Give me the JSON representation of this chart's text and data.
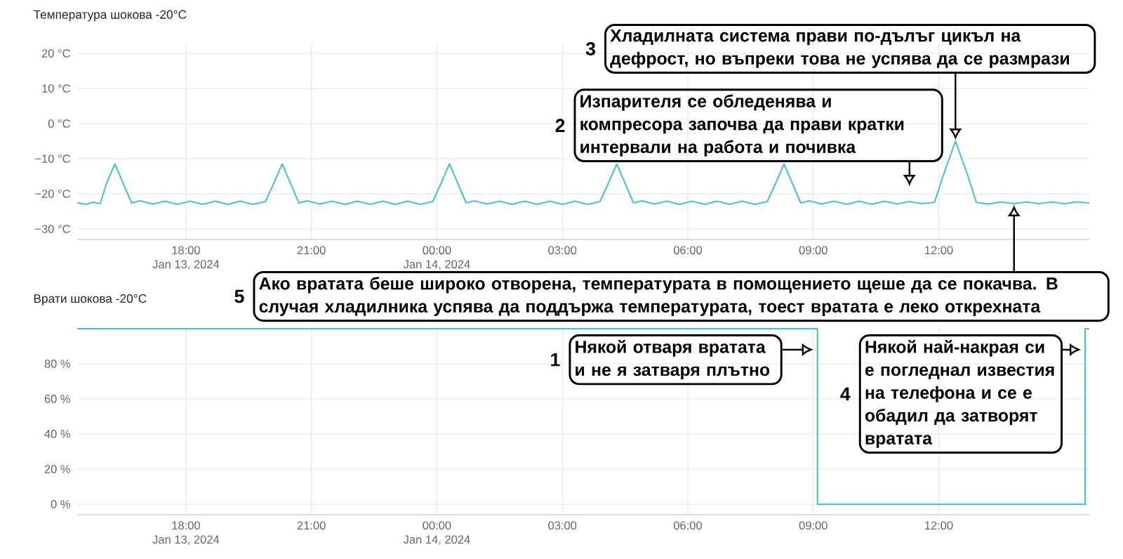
{
  "chart_data": [
    {
      "type": "line",
      "title": "Температура шокова -20°C",
      "color": "#4dbfd9",
      "x": [
        "2024-01-13T15:24",
        "2024-01-13T15:36",
        "2024-01-13T15:48",
        "2024-01-13T15:57",
        "2024-01-13T16:06",
        "2024-01-13T16:18",
        "2024-01-13T16:30",
        "2024-01-13T16:42",
        "2024-01-13T16:54",
        "2024-01-13T17:12",
        "2024-01-13T17:30",
        "2024-01-13T17:48",
        "2024-01-13T18:06",
        "2024-01-13T18:24",
        "2024-01-13T18:42",
        "2024-01-13T19:00",
        "2024-01-13T19:18",
        "2024-01-13T19:36",
        "2024-01-13T19:54",
        "2024-01-13T20:06",
        "2024-01-13T20:18",
        "2024-01-13T20:30",
        "2024-01-13T20:42",
        "2024-01-13T20:54",
        "2024-01-13T21:12",
        "2024-01-13T21:30",
        "2024-01-13T21:48",
        "2024-01-13T22:06",
        "2024-01-13T22:24",
        "2024-01-13T22:42",
        "2024-01-13T23:00",
        "2024-01-13T23:18",
        "2024-01-13T23:36",
        "2024-01-13T23:54",
        "2024-01-14T00:06",
        "2024-01-14T00:18",
        "2024-01-14T00:30",
        "2024-01-14T00:42",
        "2024-01-14T00:54",
        "2024-01-14T01:12",
        "2024-01-14T01:30",
        "2024-01-14T01:48",
        "2024-01-14T02:06",
        "2024-01-14T02:24",
        "2024-01-14T02:42",
        "2024-01-14T03:00",
        "2024-01-14T03:18",
        "2024-01-14T03:36",
        "2024-01-14T03:54",
        "2024-01-14T04:06",
        "2024-01-14T04:18",
        "2024-01-14T04:30",
        "2024-01-14T04:42",
        "2024-01-14T04:54",
        "2024-01-14T05:12",
        "2024-01-14T05:30",
        "2024-01-14T05:48",
        "2024-01-14T06:06",
        "2024-01-14T06:24",
        "2024-01-14T06:42",
        "2024-01-14T07:00",
        "2024-01-14T07:18",
        "2024-01-14T07:36",
        "2024-01-14T07:54",
        "2024-01-14T08:06",
        "2024-01-14T08:18",
        "2024-01-14T08:30",
        "2024-01-14T08:42",
        "2024-01-14T08:54",
        "2024-01-14T09:12",
        "2024-01-14T09:30",
        "2024-01-14T09:48",
        "2024-01-14T10:06",
        "2024-01-14T10:24",
        "2024-01-14T10:42",
        "2024-01-14T11:00",
        "2024-01-14T11:18",
        "2024-01-14T11:36",
        "2024-01-14T11:54",
        "2024-01-14T12:06",
        "2024-01-14T12:24",
        "2024-01-14T12:42",
        "2024-01-14T12:54",
        "2024-01-14T13:12",
        "2024-01-14T13:30",
        "2024-01-14T13:48",
        "2024-01-14T14:06",
        "2024-01-14T14:24",
        "2024-01-14T14:42",
        "2024-01-14T15:00",
        "2024-01-14T15:18",
        "2024-01-14T15:36"
      ],
      "values": [
        -22.5,
        -23.0,
        -22.4,
        -22.8,
        -17,
        -11.5,
        -17,
        -22.6,
        -22.0,
        -22.9,
        -22.1,
        -23.0,
        -22.1,
        -23.0,
        -22.1,
        -23.0,
        -22.1,
        -23.0,
        -22.2,
        -17,
        -11.5,
        -17,
        -22.6,
        -22.0,
        -22.9,
        -22.1,
        -23.0,
        -22.1,
        -23.0,
        -22.1,
        -23.0,
        -22.1,
        -23.0,
        -22.2,
        -17,
        -11.5,
        -17,
        -22.6,
        -22.0,
        -22.9,
        -22.1,
        -23.0,
        -22.1,
        -23.0,
        -22.1,
        -23.0,
        -22.1,
        -23.0,
        -22.2,
        -17,
        -11.5,
        -17,
        -22.6,
        -22.0,
        -22.9,
        -22.1,
        -23.0,
        -22.1,
        -23.0,
        -22.1,
        -23.0,
        -22.1,
        -23.0,
        -22.2,
        -17,
        -11.5,
        -17,
        -22.6,
        -22.0,
        -22.9,
        -22.1,
        -23.0,
        -22.1,
        -23.0,
        -22.1,
        -22.9,
        -22.2,
        -22.8,
        -22.4,
        -15,
        -5,
        -15,
        -22.5,
        -22.9,
        -22.3,
        -22.8,
        -22.3,
        -22.8,
        -22.3,
        -22.8,
        -22.3,
        -22.6
      ],
      "xlim": [
        "2024-01-13T15:24",
        "2024-01-14T15:36"
      ],
      "ylim": [
        -33,
        23
      ],
      "xticks": [
        {
          "value": "2024-01-13T18:00",
          "label": "18:00"
        },
        {
          "value": "2024-01-13T21:00",
          "label": "21:00"
        },
        {
          "value": "2024-01-14T00:00",
          "label": "00:00"
        },
        {
          "value": "2024-01-14T03:00",
          "label": "03:00"
        },
        {
          "value": "2024-01-14T06:00",
          "label": "06:00"
        },
        {
          "value": "2024-01-14T09:00",
          "label": "09:00"
        },
        {
          "value": "2024-01-14T12:00",
          "label": "12:00"
        }
      ],
      "yticks": [
        {
          "value": -30,
          "label": "−30 °C"
        },
        {
          "value": -20,
          "label": "−20 °C"
        },
        {
          "value": -10,
          "label": "−10 °C"
        },
        {
          "value": 0,
          "label": "0 °C"
        },
        {
          "value": 10,
          "label": "10 °C"
        },
        {
          "value": 20,
          "label": "20 °C"
        }
      ],
      "grid": true,
      "annotations": [
        "Jan 13, 2024",
        "Jan 14, 2024",
        "2",
        {
          "text": "Изпарителя се обледенява и компресора започва да прави кратки интервали на работа и почивка",
          "x": "2024-01-14T11:18",
          "y": -22.2
        },
        "3",
        {
          "text": "Хладилната система прави по-дълъг цикъл на дефрост, но въпреки това не успява да се размрази",
          "x": "2024-01-14T12:24",
          "y": -5
        },
        "5",
        {
          "text": "Ако вратата беше широко отворена, температурата в помощението щеше да се покачва. В случая хладилника успява да поддържа температурата, тоест вратата е леко открехната",
          "x": "2024-01-14T13:48",
          "y": -22.8
        }
      ]
    },
    {
      "type": "step",
      "title": "Врати шокова -20°C",
      "color": "#4dbfd9",
      "x": [
        "2024-01-13T15:24",
        "2024-01-14T09:06",
        "2024-01-14T15:30",
        "2024-01-14T15:36"
      ],
      "values": [
        100,
        0,
        100,
        100
      ],
      "xlim": [
        "2024-01-13T15:24",
        "2024-01-14T15:36"
      ],
      "ylim": [
        -6,
        101
      ],
      "xticks": [
        {
          "value": "2024-01-13T18:00",
          "label": "18:00"
        },
        {
          "value": "2024-01-13T21:00",
          "label": "21:00"
        },
        {
          "value": "2024-01-14T00:00",
          "label": "00:00"
        },
        {
          "value": "2024-01-14T03:00",
          "label": "03:00"
        },
        {
          "value": "2024-01-14T06:00",
          "label": "06:00"
        },
        {
          "value": "2024-01-14T09:00",
          "label": "09:00"
        },
        {
          "value": "2024-01-14T12:00",
          "label": "12:00"
        }
      ],
      "yticks": [
        {
          "value": 0,
          "label": "0 %"
        },
        {
          "value": 20,
          "label": "20 %"
        },
        {
          "value": 40,
          "label": "40 %"
        },
        {
          "value": 60,
          "label": "60 %"
        },
        {
          "value": 80,
          "label": "80 %"
        }
      ],
      "grid": true,
      "annotations": [
        "Jan 13, 2024",
        "Jan 14, 2024",
        "1",
        {
          "text": "Някой отваря вратата и не я затваря плътно",
          "x": "2024-01-14T09:06",
          "y": 88
        },
        "4",
        {
          "text": "Някой най-накрая си е погледнал известия на телефона и се е обадил да затворят вратата",
          "x": "2024-01-14T15:30",
          "y": 88
        }
      ]
    }
  ]
}
